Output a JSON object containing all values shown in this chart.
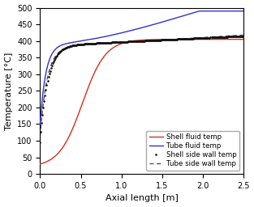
{
  "title": "",
  "xlabel": "Axial length [m]",
  "ylabel": "Temperature [°C]",
  "xlim": [
    0,
    2.5
  ],
  "ylim": [
    0,
    500
  ],
  "xticks": [
    0,
    0.5,
    1.0,
    1.5,
    2.0,
    2.5
  ],
  "yticks": [
    0,
    50,
    100,
    150,
    200,
    250,
    300,
    350,
    400,
    450,
    500
  ],
  "legend_entries": [
    "Shell fluid temp",
    "Tube fluid temp",
    "Shell side wall temp",
    "Tube side wall temp"
  ],
  "shell_fluid_color": "#d43020",
  "tube_fluid_color": "#3030d0",
  "shell_wall_color": "#111111",
  "tube_wall_color": "#444444",
  "figsize": [
    3.13,
    2.56
  ],
  "dpi": 100
}
